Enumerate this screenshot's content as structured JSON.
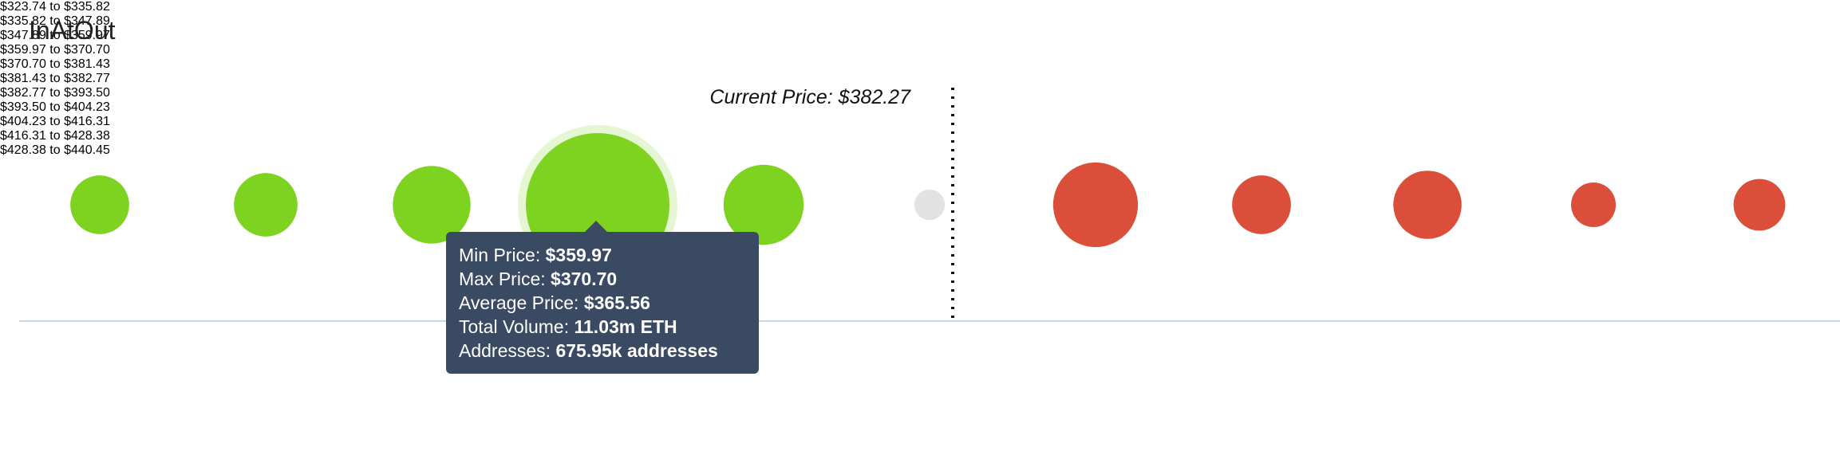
{
  "chart_data": {
    "type": "bubble",
    "categories": [
      "$323.74\nto\n$335.82",
      "$335.82\nto\n$347.89",
      "$347.89\nto\n$359.97",
      "$359.97\nto\n$370.70",
      "$370.70\nto\n$381.43",
      "$381.43\nto\n$382.77",
      "$382.77\nto\n$393.50",
      "$393.50\nto\n$404.23",
      "$404.23\nto\n$416.31",
      "$416.31\nto\n$428.38",
      "$428.38\nto\n$440.45"
    ],
    "series": [
      {
        "name": "In",
        "color": "#7ed321",
        "values": [
          1.85,
          2.16,
          3.23,
          11.03,
          3.43,
          null,
          null,
          null,
          null,
          null,
          null
        ]
      },
      {
        "name": "At",
        "color": "#e2e2e2",
        "values": [
          null,
          null,
          null,
          null,
          null,
          0.5,
          null,
          null,
          null,
          null,
          null
        ]
      },
      {
        "name": "Out",
        "color": "#db4f3a",
        "values": [
          null,
          null,
          null,
          null,
          null,
          null,
          3.84,
          1.85,
          2.49,
          1.07,
          1.43
        ]
      }
    ],
    "annotation": "Current Price: $382.27",
    "tooltip": [
      {
        "label": "Min Price:",
        "value": "$359.97"
      },
      {
        "label": "Max Price:",
        "value": "$370.70"
      },
      {
        "label": "Average Price:",
        "value": "$365.56"
      },
      {
        "label": "Total Volume:",
        "value": "11.03m ETH"
      },
      {
        "label": "Addresses:",
        "value": "675.95k addresses"
      }
    ]
  }
}
